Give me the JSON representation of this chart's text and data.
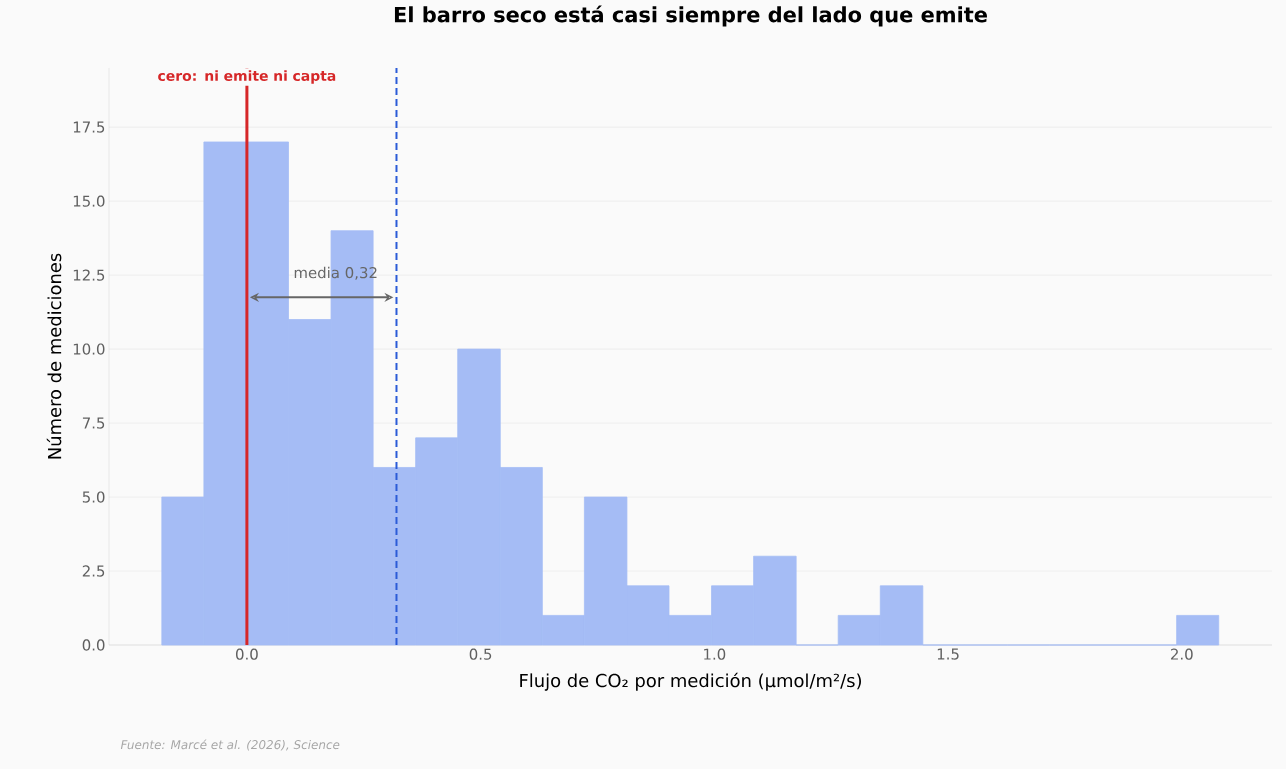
{
  "chart_data": {
    "type": "histogram",
    "title": "El barro seco está casi siempre del lado que emite",
    "xlabel": "Flujo de CO₂ por medición (µmol/m²/s)",
    "ylabel": "Número de mediciones",
    "bins": [
      -0.182,
      -0.092,
      -0.001,
      0.089,
      0.18,
      0.27,
      0.361,
      0.451,
      0.542,
      0.632,
      0.722,
      0.813,
      0.903,
      0.994,
      1.084,
      1.175,
      1.265,
      1.355,
      1.446,
      1.536,
      1.627,
      1.717,
      1.808,
      1.898,
      1.989,
      2.079
    ],
    "values": [
      5,
      17,
      17,
      11,
      14,
      6,
      7,
      10,
      6,
      1,
      5,
      2,
      1,
      2,
      3,
      0,
      1,
      2,
      0,
      0,
      0,
      0,
      0,
      0,
      1
    ],
    "color": "#a5bcf5",
    "xlim": [
      -0.295,
      2.193
    ],
    "ylim": [
      0,
      19.5
    ],
    "xticks": [
      {
        "value": 0,
        "label": "0.0"
      },
      {
        "value": 0.5,
        "label": "0.5"
      },
      {
        "value": 1,
        "label": "1.0"
      },
      {
        "value": 1.5,
        "label": "1.5"
      },
      {
        "value": 2,
        "label": "2.0"
      }
    ],
    "yticks": [
      {
        "value": 0,
        "label": "0.0"
      },
      {
        "value": 2.5,
        "label": "2.5"
      },
      {
        "value": 5,
        "label": "5.0"
      },
      {
        "value": 7.5,
        "label": "7.5"
      },
      {
        "value": 10,
        "label": "10.0"
      },
      {
        "value": 12.5,
        "label": "12.5"
      },
      {
        "value": 15,
        "label": "15.0"
      },
      {
        "value": 17.5,
        "label": "17.5"
      }
    ],
    "grid": "y",
    "ref_lines": [
      {
        "axis": "x",
        "value": 0,
        "label": "cero: ni emite ni capta",
        "color": "#d62728",
        "line_style": "solid"
      },
      {
        "axis": "x",
        "value": 0.32,
        "color": "#2b5bd7",
        "line_style": "dashed"
      }
    ],
    "annotations": [
      {
        "text": "media 0,32",
        "x": 0.32,
        "y": 11.75
      },
      "Fuente: Marcé et al. (2026), Science"
    ]
  }
}
